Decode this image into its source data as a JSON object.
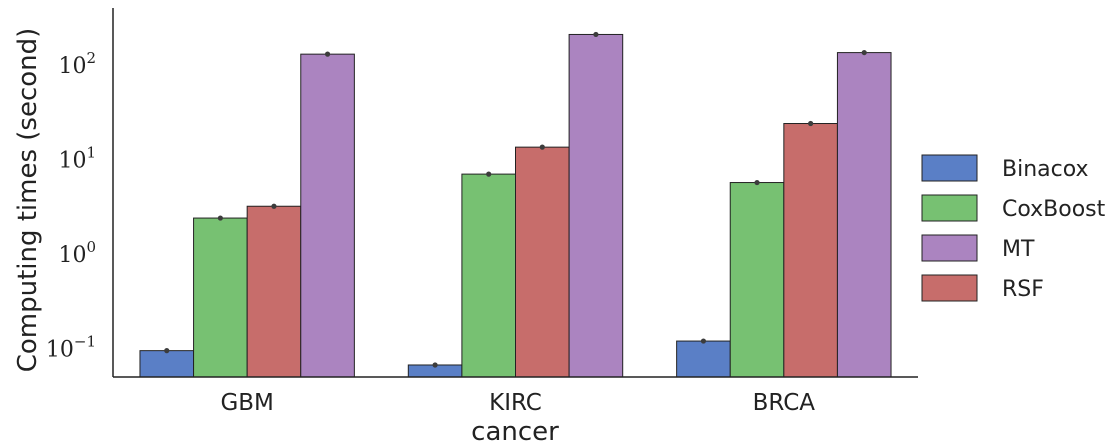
{
  "chart_data": {
    "type": "bar",
    "log_scale_y": true,
    "categories": [
      "GBM",
      "KIRC",
      "BRCA"
    ],
    "series": [
      {
        "name": "Binacox",
        "color": "#5a7fc6",
        "values": [
          0.095,
          0.067,
          0.12
        ]
      },
      {
        "name": "CoxBoost",
        "color": "#77c172",
        "values": [
          2.4,
          7.0,
          5.7
        ]
      },
      {
        "name": "RSF",
        "color": "#c76d6b",
        "values": [
          3.2,
          13.5,
          24
        ]
      },
      {
        "name": "MT",
        "color": "#ab84c0",
        "values": [
          130,
          210,
          135
        ]
      }
    ],
    "legend_order": [
      "Binacox",
      "CoxBoost",
      "MT",
      "RSF"
    ],
    "xlabel": "cancer",
    "ylabel": "Computing times (second)",
    "ylim": [
      0.05,
      400
    ],
    "y_ticks": [
      {
        "value": 0.1,
        "base": "10",
        "exp": "−1"
      },
      {
        "value": 1,
        "base": "10",
        "exp": "0"
      },
      {
        "value": 10,
        "base": "10",
        "exp": "1"
      },
      {
        "value": 100,
        "base": "10",
        "exp": "2"
      }
    ],
    "grid": false,
    "legend_position": "right"
  }
}
